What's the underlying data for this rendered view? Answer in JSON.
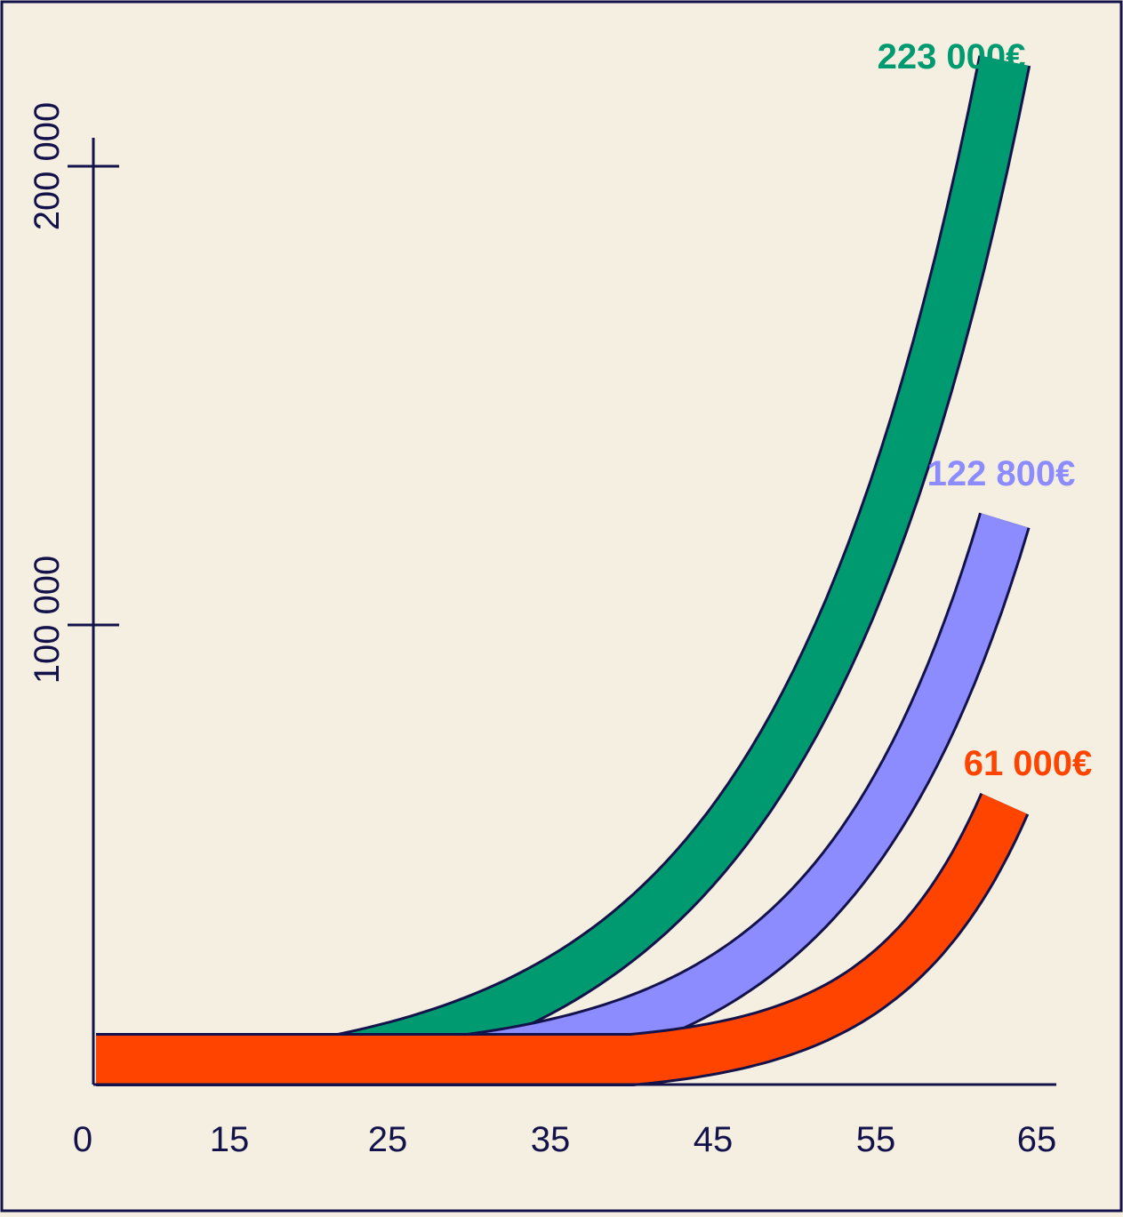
{
  "chart_data": {
    "type": "area",
    "title": "",
    "xlabel": "",
    "ylabel": "",
    "x_ticks": [
      "0",
      "15",
      "25",
      "35",
      "45",
      "55",
      "65"
    ],
    "y_ticks": [
      {
        "value": 100000,
        "label": "100 000"
      },
      {
        "value": 200000,
        "label": "200 000"
      }
    ],
    "ylim": [
      0,
      230000
    ],
    "grid": false,
    "series": [
      {
        "start_age": 22,
        "end_age": 63,
        "end_value": 223000,
        "end_label": "223 000€",
        "color": "#009a70"
      },
      {
        "start_age": 30,
        "end_age": 63,
        "end_value": 122800,
        "end_label": "122 800€",
        "color": "#8c8cff"
      },
      {
        "start_age": 40,
        "end_age": 63,
        "end_value": 61000,
        "end_label": "61 000€",
        "color": "#ff4400"
      }
    ],
    "colors": {
      "background": "#f5efe2",
      "axis": "#13124a",
      "outline": "#13124a"
    }
  }
}
